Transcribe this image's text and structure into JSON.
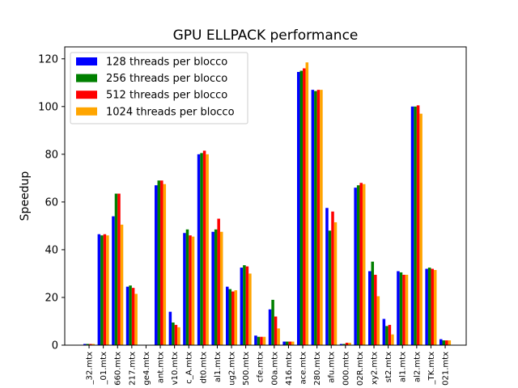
{
  "chart_data": {
    "type": "bar",
    "title": "GPU ELLPACK performance",
    "xlabel": "",
    "ylabel": "Speedup",
    "ylim": [
      0,
      125
    ],
    "yticks": [
      0,
      20,
      40,
      60,
      80,
      100,
      120
    ],
    "grid": false,
    "legend_position": "top-left",
    "categories": [
      "_32.mtx",
      "_01.mtx",
      "660.mtx",
      "217.mtx",
      "ge4.mtx",
      "ant.mtx",
      "v10.mtx",
      "c_A.mtx",
      "dt0.mtx",
      "al1.mtx",
      "ug2.mtx",
      "500.mtx",
      "cfe.mtx",
      "00a.mtx",
      "416.mtx",
      "ace.mtx",
      "280.mtx",
      "afu.mtx",
      "000.mtx",
      "02R.mtx",
      "xy2.mtx",
      "st2.mtx",
      "al1.mtx",
      "al2.mtx",
      "_TK.mtx",
      "021.mtx"
    ],
    "series": [
      {
        "name": "128 threads per blocco",
        "color": "#0000ff",
        "values": [
          0.5,
          46.5,
          54,
          24.5,
          0,
          67,
          14,
          47,
          80,
          47.5,
          24.5,
          32.5,
          4,
          15,
          1.5,
          114.5,
          107,
          57.5,
          0.5,
          66,
          31,
          11,
          31,
          100,
          32,
          2.5
        ]
      },
      {
        "name": "256 threads per blocco",
        "color": "#008000",
        "values": [
          0.5,
          46,
          63.5,
          25,
          0,
          69,
          9.5,
          48.5,
          80.5,
          48.5,
          23.5,
          33.5,
          3.5,
          19,
          1.5,
          115,
          106.5,
          48,
          0.5,
          67,
          35,
          8,
          30.5,
          100,
          32.5,
          2
        ]
      },
      {
        "name": "512 threads per blocco",
        "color": "#ff0000",
        "values": [
          0.5,
          46.5,
          63.5,
          24,
          0,
          69,
          8.5,
          46,
          81.5,
          53,
          22.5,
          33,
          3.5,
          12,
          1.5,
          116,
          107,
          56,
          1,
          68,
          29.5,
          8.5,
          29.5,
          100.5,
          32,
          2
        ]
      },
      {
        "name": "1024 threads per blocco",
        "color": "#ffa500",
        "values": [
          0.5,
          46,
          50.5,
          21.5,
          0,
          67.5,
          7.5,
          45.5,
          80,
          47.5,
          23,
          30,
          3.5,
          7,
          1.5,
          118.5,
          107,
          51.5,
          1,
          67.5,
          20.5,
          4.5,
          29.5,
          97,
          31.5,
          2
        ]
      }
    ]
  }
}
